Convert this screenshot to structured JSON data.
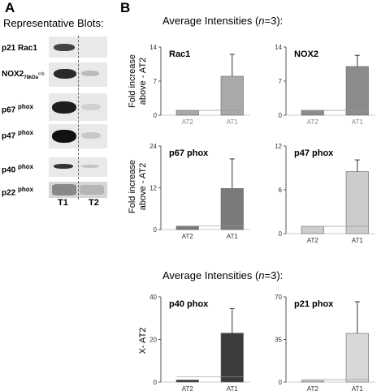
{
  "panel_a": {
    "letter": "A",
    "title": "Representative Blots:",
    "blots": [
      {
        "name": "p21 Rac1",
        "marker": ""
      },
      {
        "name": "NOX2",
        "marker": "78kDa"
      },
      {
        "name": "p67",
        "sup": "phox"
      },
      {
        "name": "p47",
        "sup": "phox"
      },
      {
        "name": "p40",
        "sup": "phox"
      },
      {
        "name": "p22",
        "sup": "phox"
      }
    ],
    "lanes": [
      "T1",
      "T2"
    ]
  },
  "panel_b": {
    "letter": "B",
    "title_prefix": "Average  Intensities (",
    "title_n": "n",
    "title_suffix": "=3):",
    "ylabel_row1_line1": "Fold increase",
    "ylabel_row1_line2": "above - AT2",
    "ylabel_row2_line1": "Fold increase",
    "ylabel_row2_line2": "above - AT2"
  },
  "panel_c": {
    "title_prefix": "Average  Intensities (",
    "title_n": "n",
    "title_suffix": "=3):",
    "ylabel": "X- AT2"
  },
  "chart_data": [
    {
      "type": "bar",
      "title": "Rac1",
      "categories": [
        "AT2",
        "AT1"
      ],
      "values": [
        1,
        8
      ],
      "error": [
        0,
        4.5
      ],
      "ylim": [
        0,
        14
      ],
      "yticks": [
        0,
        7,
        14
      ],
      "colors": [
        "#a9a9a9",
        "#a9a9a9"
      ],
      "label_color": "#888888",
      "baseline": 1
    },
    {
      "type": "bar",
      "title": "NOX2",
      "categories": [
        "AT2",
        "AT1"
      ],
      "values": [
        1,
        10
      ],
      "error": [
        0,
        2.3
      ],
      "ylim": [
        0,
        14
      ],
      "yticks": [
        0,
        7,
        14
      ],
      "colors": [
        "#8c8c8c",
        "#8c8c8c"
      ],
      "label_color": "#888888",
      "baseline": 1
    },
    {
      "type": "bar",
      "title": "p67 phox",
      "categories": [
        "AT2",
        "AT1"
      ],
      "values": [
        1,
        11.8
      ],
      "error": [
        0,
        8.5
      ],
      "ylim": [
        0,
        24
      ],
      "yticks": [
        0,
        12,
        24
      ],
      "colors": [
        "#7a7a7a",
        "#7a7a7a"
      ],
      "label_color": "#333333",
      "baseline": 1
    },
    {
      "type": "bar",
      "title": "p47 phox",
      "categories": [
        "AT2",
        "AT1"
      ],
      "values": [
        1,
        8.5
      ],
      "error": [
        0,
        1.6
      ],
      "ylim": [
        0,
        12
      ],
      "yticks": [
        0,
        6,
        12
      ],
      "colors": [
        "#cccccc",
        "#cccccc"
      ],
      "label_color": "#333333",
      "baseline": 1
    },
    {
      "type": "bar",
      "title": "p40 phox",
      "categories": [
        "AT2",
        "AT1"
      ],
      "values": [
        1,
        23
      ],
      "error": [
        0,
        11.5
      ],
      "ylim": [
        0,
        40
      ],
      "yticks": [
        0,
        20,
        40
      ],
      "colors": [
        "#3c3c3c",
        "#3c3c3c"
      ],
      "label_color": "#333333",
      "baseline": 2.5
    },
    {
      "type": "bar",
      "title": "p21 phox",
      "categories": [
        "AT2",
        "AT1"
      ],
      "values": [
        1,
        40
      ],
      "error": [
        0,
        26
      ],
      "ylim": [
        0,
        70
      ],
      "yticks": [
        0,
        35,
        70
      ],
      "colors": [
        "#d8d8d8",
        "#d8d8d8"
      ],
      "label_color": "#333333",
      "baseline": 2
    }
  ]
}
